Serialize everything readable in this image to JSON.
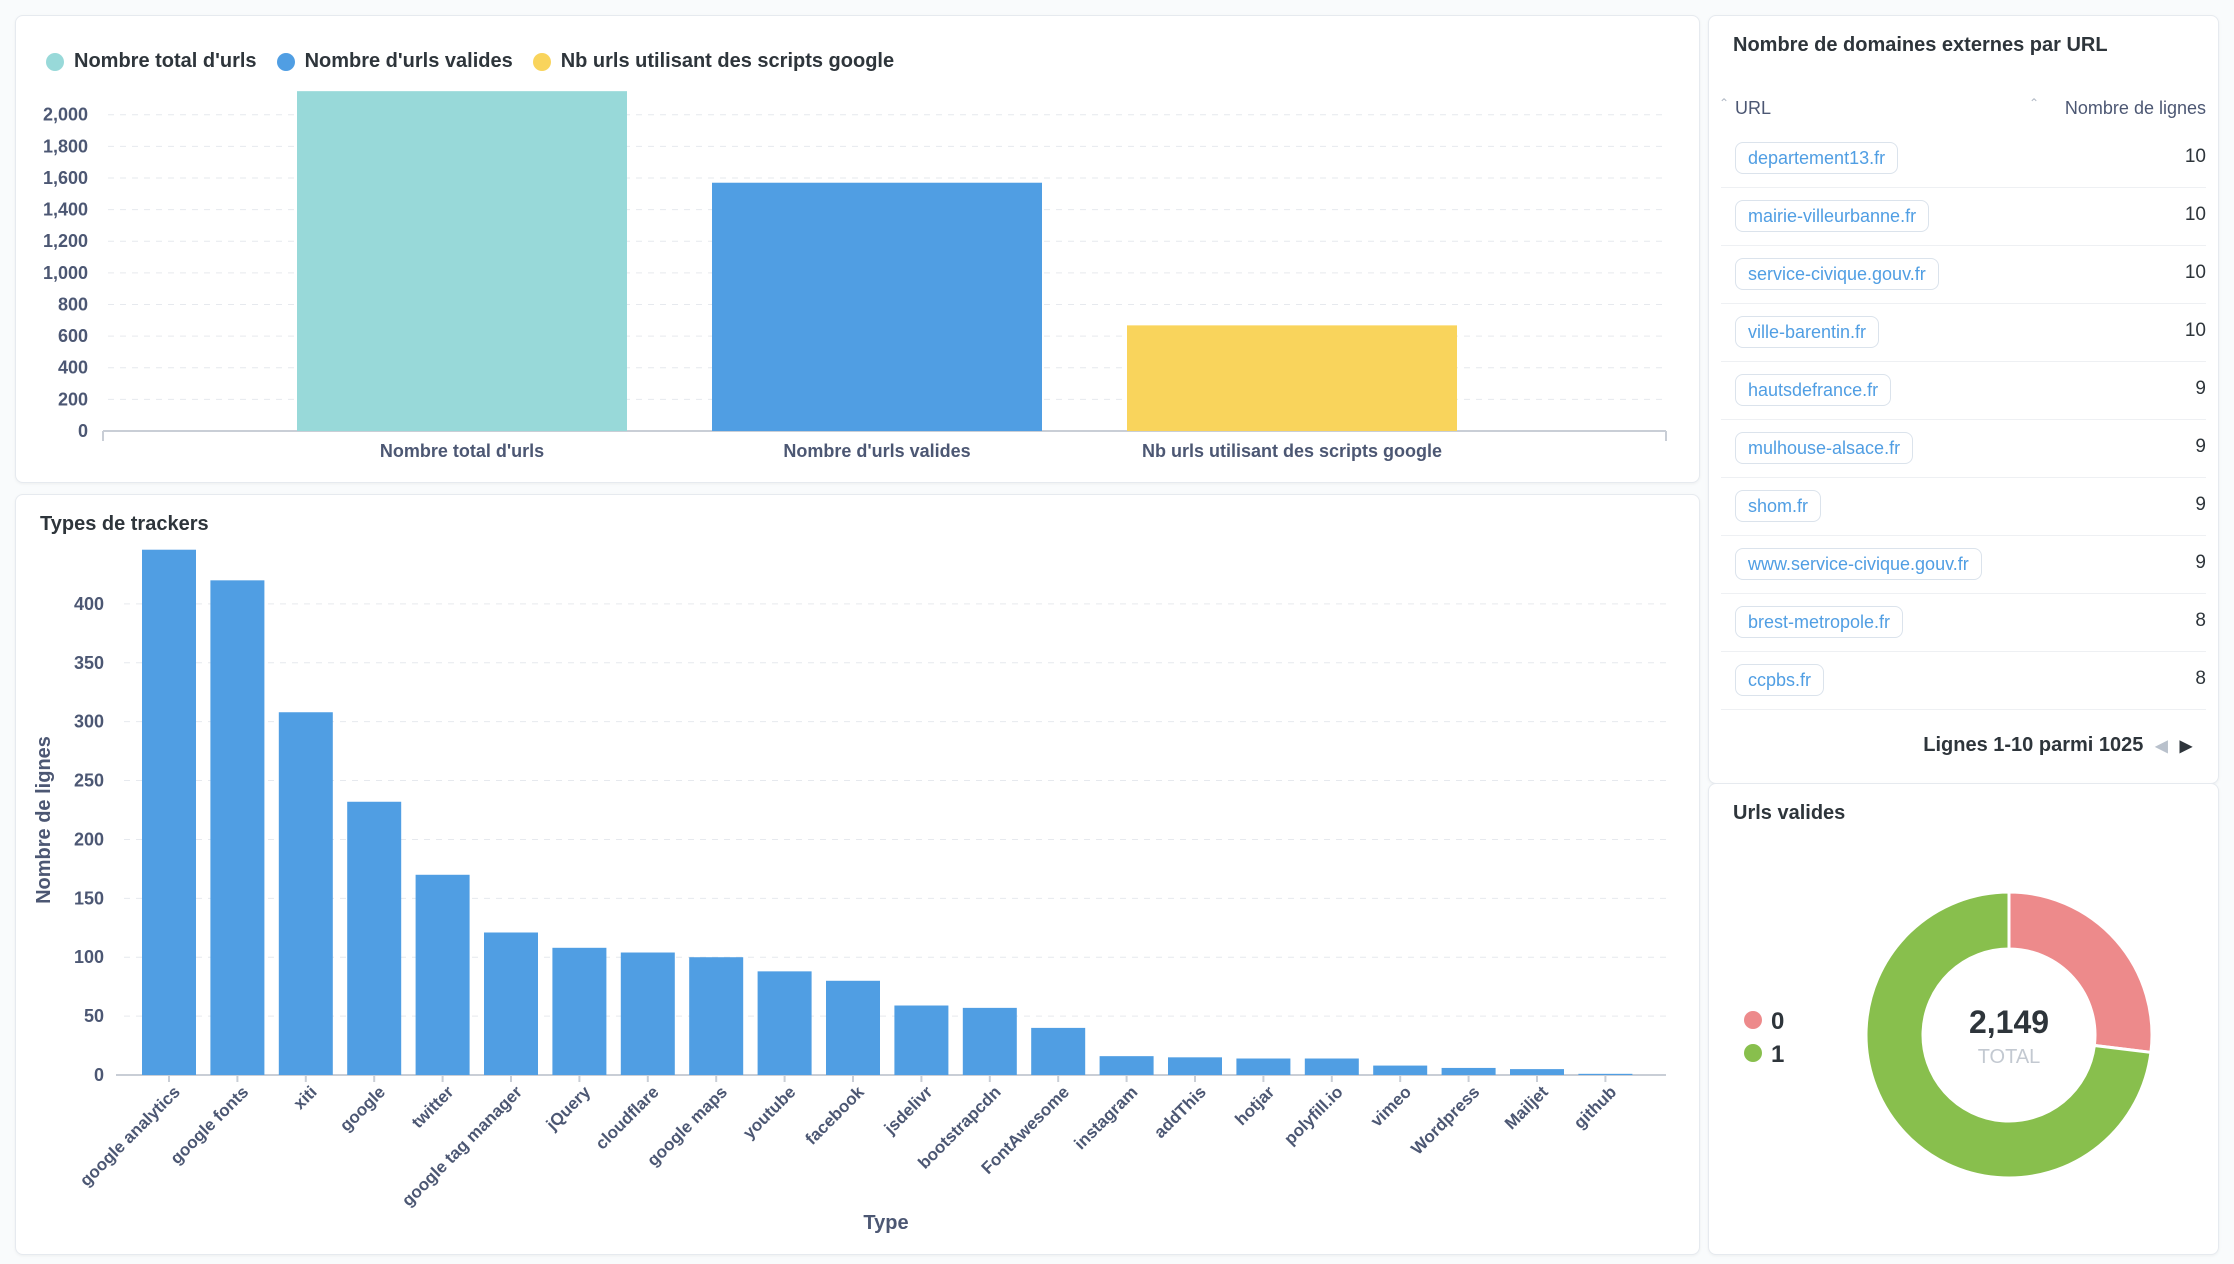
{
  "counts_card": {
    "legend": [
      {
        "label": "Nombre total d'urls",
        "color": "#98d9d9"
      },
      {
        "label": "Nombre d'urls valides",
        "color": "#509ee3"
      },
      {
        "label": "Nb urls utilisant des scripts google",
        "color": "#f9d45c"
      }
    ]
  },
  "trackers_card": {
    "title": "Types de trackers"
  },
  "table_card": {
    "title": "Nombre de domaines externes par URL",
    "col_url": "URL",
    "col_count": "Nombre de lignes",
    "rows": [
      {
        "url": "departement13.fr",
        "count": "10"
      },
      {
        "url": "mairie-villeurbanne.fr",
        "count": "10"
      },
      {
        "url": "service-civique.gouv.fr",
        "count": "10"
      },
      {
        "url": "ville-barentin.fr",
        "count": "10"
      },
      {
        "url": "hautsdefrance.fr",
        "count": "9"
      },
      {
        "url": "mulhouse-alsace.fr",
        "count": "9"
      },
      {
        "url": "shom.fr",
        "count": "9"
      },
      {
        "url": "www.service-civique.gouv.fr",
        "count": "9"
      },
      {
        "url": "brest-metropole.fr",
        "count": "8"
      },
      {
        "url": "ccpbs.fr",
        "count": "8"
      }
    ],
    "pager_text": "Lignes 1-10 parmi 1025",
    "sort_icon": "sort-arrow-icon",
    "prev_icon": "chevron-left-icon",
    "next_icon": "chevron-right-icon"
  },
  "donut_card": {
    "title": "Urls valides"
  },
  "chart_data": [
    {
      "type": "bar",
      "categories": [
        "Nombre total d'urls",
        "Nombre d'urls valides",
        "Nb urls utilisant des scripts google"
      ],
      "series": [
        {
          "values": [
            2149,
            1570,
            668
          ]
        }
      ],
      "colors": [
        "#98d9d9",
        "#509ee3",
        "#f9d45c"
      ],
      "ylim": [
        0,
        2150
      ],
      "yticks": [
        0,
        200,
        400,
        600,
        800,
        "1,000",
        "1,200",
        "1,400",
        "1,600",
        "1,800",
        "2,000"
      ],
      "ytick_values": [
        0,
        200,
        400,
        600,
        800,
        1000,
        1200,
        1400,
        1600,
        1800,
        2000
      ],
      "grid": true,
      "legend": "top-left"
    },
    {
      "type": "bar",
      "title": "Types de trackers",
      "xlabel": "Type",
      "ylabel": "Nombre de lignes",
      "categories": [
        "google analytics",
        "google fonts",
        "xiti",
        "google",
        "twitter",
        "google tag manager",
        "jQuery",
        "cloudflare",
        "google maps",
        "youtube",
        "facebook",
        "jsdelivr",
        "bootstrapcdn",
        "FontAwesome",
        "instagram",
        "addThis",
        "hotjar",
        "polyfill.io",
        "vimeo",
        "Wordpress",
        "Mailjet",
        "github"
      ],
      "values": [
        446,
        420,
        308,
        232,
        170,
        121,
        108,
        104,
        100,
        88,
        80,
        59,
        57,
        40,
        16,
        15,
        14,
        14,
        8,
        6,
        5,
        1
      ],
      "color": "#509ee3",
      "ylim": [
        0,
        450
      ],
      "yticks": [
        0,
        50,
        100,
        150,
        200,
        250,
        300,
        350,
        400
      ],
      "grid": true
    },
    {
      "type": "pie",
      "title": "Urls valides",
      "labels": [
        "0",
        "1"
      ],
      "values": [
        579,
        1570
      ],
      "colors": [
        "#ed8a8b",
        "#88bf4d"
      ],
      "center_value": "2,149",
      "center_label": "TOTAL",
      "legend": "left"
    }
  ]
}
